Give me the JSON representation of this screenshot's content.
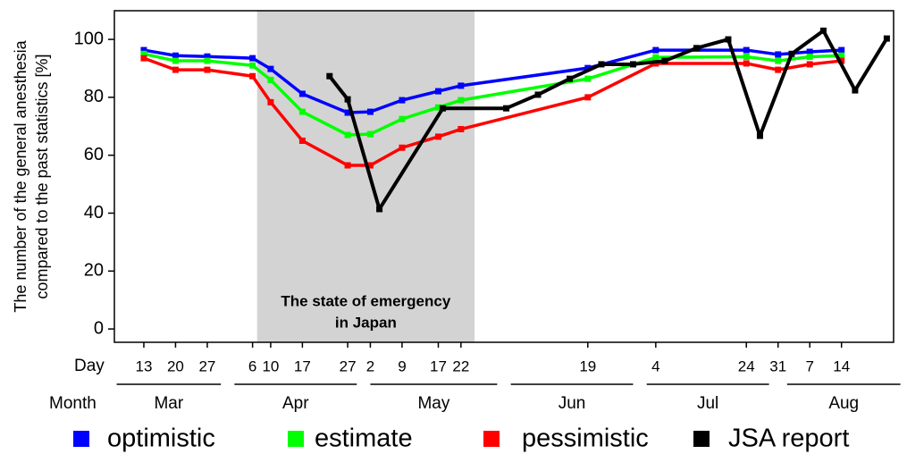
{
  "chart_data": {
    "type": "line",
    "y_label": [
      "The number of the general anesthesia",
      "compared to the past statistics [%]"
    ],
    "day_label": "Day",
    "month_label": "Month",
    "xlim": [
      66.5,
      238.5
    ],
    "ylim": [
      -4.6,
      109.9
    ],
    "yticks": [
      0,
      20,
      40,
      60,
      80,
      100
    ],
    "xticks": [
      {
        "value": 73,
        "label": "13"
      },
      {
        "value": 80,
        "label": "20"
      },
      {
        "value": 87,
        "label": "27"
      },
      {
        "value": 97,
        "label": "6"
      },
      {
        "value": 101,
        "label": "10"
      },
      {
        "value": 108,
        "label": "17"
      },
      {
        "value": 118,
        "label": "27"
      },
      {
        "value": 123,
        "label": "2"
      },
      {
        "value": 130,
        "label": "9"
      },
      {
        "value": 138,
        "label": "17"
      },
      {
        "value": 143,
        "label": "22"
      },
      {
        "value": 171,
        "label": "19"
      },
      {
        "value": 186,
        "label": "4"
      },
      {
        "value": 206,
        "label": "24"
      },
      {
        "value": 213,
        "label": "31"
      },
      {
        "value": 220,
        "label": "7"
      },
      {
        "value": 227,
        "label": "14"
      }
    ],
    "months": [
      {
        "label": "Mar",
        "start": 67,
        "end": 90
      },
      {
        "label": "Apr",
        "start": 93,
        "end": 120
      },
      {
        "label": "May",
        "start": 123,
        "end": 151
      },
      {
        "label": "Jun",
        "start": 154,
        "end": 181
      },
      {
        "label": "Jul",
        "start": 184,
        "end": 211
      },
      {
        "label": "Aug",
        "start": 215,
        "end": 240
      }
    ],
    "shade": {
      "label": [
        "The state of emergency",
        "in Japan"
      ],
      "xlim": [
        98,
        146
      ],
      "color": "#d3d3d3"
    },
    "series": [
      {
        "name": "optimistic",
        "color": "#0000ff",
        "x": [
          73,
          80,
          87,
          97,
          101,
          108,
          118,
          123,
          130,
          138,
          143,
          171,
          186,
          206,
          213,
          220,
          227
        ],
        "values": [
          96.3,
          94.4,
          94.1,
          93.5,
          89.8,
          81.2,
          74.7,
          75,
          79,
          82.1,
          84,
          90.1,
          96.3,
          96.3,
          94.8,
          95.7,
          96.3
        ]
      },
      {
        "name": "estimate",
        "color": "#00ff00",
        "x": [
          73,
          80,
          87,
          97,
          101,
          108,
          118,
          123,
          130,
          138,
          143,
          171,
          186,
          206,
          213,
          220,
          227
        ],
        "values": [
          95,
          92.6,
          92.6,
          91,
          86,
          75,
          67,
          67.3,
          72.5,
          76.5,
          79,
          86.4,
          93.8,
          94,
          92.6,
          94,
          94.4
        ]
      },
      {
        "name": "pessimistic",
        "color": "#ff0000",
        "x": [
          73,
          80,
          87,
          97,
          101,
          108,
          118,
          123,
          130,
          138,
          143,
          171,
          186,
          206,
          213,
          220,
          227
        ],
        "values": [
          93.5,
          89.5,
          89.5,
          87.3,
          78.3,
          65,
          56.5,
          56.5,
          62.6,
          66.4,
          69,
          80,
          91.7,
          91.7,
          89.5,
          91.4,
          92.6
        ]
      },
      {
        "name": "JSA report",
        "color": "#000000",
        "x": [
          114,
          118,
          125,
          139,
          153,
          160,
          167,
          174,
          181,
          188,
          195,
          202,
          209,
          216,
          223,
          230,
          237
        ],
        "values": [
          87.3,
          79.3,
          41.4,
          76.2,
          76.2,
          80.9,
          86.4,
          91.4,
          91.4,
          92.6,
          97,
          100,
          66.7,
          95,
          103,
          82.4,
          100.3
        ]
      }
    ]
  }
}
